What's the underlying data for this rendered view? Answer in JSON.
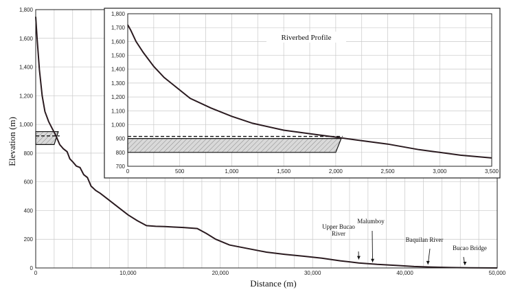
{
  "chart_data": [
    {
      "type": "line",
      "title": "",
      "xlabel": "Distance (m)",
      "ylabel": "Elevation (m)",
      "xlim": [
        0,
        50000
      ],
      "ylim": [
        0,
        1800
      ],
      "x_ticks": [
        0,
        10000,
        20000,
        30000,
        40000,
        50000
      ],
      "x_tick_labels": [
        "0",
        "10,000",
        "20,000",
        "30,000",
        "40,000",
        "50,000"
      ],
      "y_ticks": [
        0,
        200,
        400,
        600,
        800,
        1000,
        1200,
        1400,
        1600,
        1800
      ],
      "y_tick_labels": [
        "0",
        "200",
        "400",
        "600",
        "800",
        "1,000",
        "1,200",
        "1,400",
        "1,600",
        "1,800"
      ],
      "grid": true,
      "series": [
        {
          "x": [
            0,
            150,
            400,
            700,
            1000,
            1400,
            1800,
            2200,
            2600,
            3000,
            3400,
            3700,
            4000,
            4400,
            4800,
            5200,
            5600,
            6000,
            6500,
            7000,
            8000,
            9000,
            10000,
            11000,
            12000,
            13000,
            14000,
            15000,
            16000,
            17500,
            18500,
            19500,
            21000,
            23000,
            25000,
            27000,
            29000,
            31000,
            33000,
            35000,
            37000,
            39000,
            41000,
            43000,
            45000,
            47000,
            50000
          ],
          "y": [
            1750,
            1600,
            1380,
            1200,
            1090,
            1020,
            970,
            920,
            860,
            830,
            810,
            760,
            740,
            710,
            700,
            650,
            630,
            570,
            540,
            520,
            470,
            420,
            370,
            330,
            295,
            290,
            288,
            285,
            282,
            275,
            240,
            200,
            160,
            135,
            110,
            95,
            82,
            68,
            50,
            35,
            25,
            18,
            10,
            6,
            3,
            1,
            0
          ]
        }
      ],
      "annotations": [
        {
          "label": "Upper Bucao River",
          "line1": "Upper Bucao",
          "line2": "River",
          "x": 35000,
          "y": 45
        },
        {
          "label": "Malumboy",
          "x": 36500,
          "y": 25
        },
        {
          "label": "Baquilan River",
          "x": 42500,
          "y": 10
        },
        {
          "label": "Bucao Bridge",
          "x": 46500,
          "y": 5
        }
      ],
      "highlight": {
        "dashed_level": 920,
        "hatched_band": [
          860,
          950
        ],
        "hatched_x": [
          0,
          2000
        ]
      }
    },
    {
      "type": "line",
      "title": "Riverbed Profile",
      "xlabel": "",
      "ylabel": "",
      "xlim": [
        0,
        3500
      ],
      "ylim": [
        700,
        1800
      ],
      "x_ticks": [
        0,
        500,
        1000,
        1500,
        2000,
        2500,
        3000,
        3500
      ],
      "x_tick_labels": [
        "0",
        "500",
        "1,000",
        "1,500",
        "2,000",
        "2,500",
        "3,000",
        "3,500"
      ],
      "y_ticks": [
        700,
        800,
        900,
        1000,
        1100,
        1200,
        1300,
        1400,
        1500,
        1600,
        1700,
        1800
      ],
      "y_tick_labels": [
        "700",
        "800",
        "900",
        "1,000",
        "1,100",
        "1,200",
        "1,300",
        "1,400",
        "1,500",
        "1,600",
        "1,700",
        "1,800"
      ],
      "grid": true,
      "series": [
        {
          "x": [
            0,
            30,
            80,
            150,
            250,
            350,
            450,
            600,
            800,
            1000,
            1200,
            1500,
            1800,
            2000,
            2200,
            2500,
            2800,
            3000,
            3200,
            3500
          ],
          "y": [
            1720,
            1680,
            1600,
            1520,
            1420,
            1340,
            1280,
            1190,
            1120,
            1060,
            1010,
            960,
            930,
            910,
            890,
            860,
            820,
            800,
            780,
            760
          ]
        }
      ],
      "highlight": {
        "dashed_level": 915,
        "hatched_band": [
          800,
          900
        ],
        "hatched_x": [
          0,
          2000
        ]
      }
    }
  ]
}
